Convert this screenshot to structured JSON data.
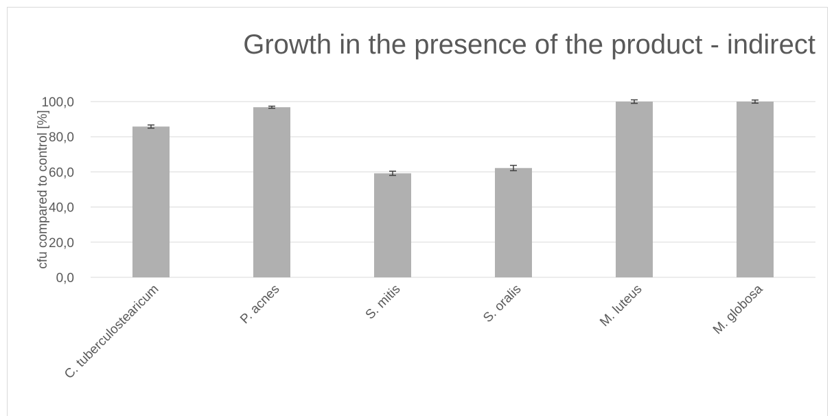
{
  "chart_data": {
    "type": "bar",
    "title": "Growth in the presence of the product - indirect",
    "xlabel": "",
    "ylabel": "cfu compared to control [%]",
    "categories": [
      "C. tuberculostearicum",
      "P. acnes",
      "S. mitis",
      "S. oralis",
      "M. luteus",
      "M. globosa"
    ],
    "values": [
      85.8,
      96.8,
      59.2,
      62.2,
      100.0,
      100.0
    ],
    "errors": [
      0.9,
      0.6,
      1.2,
      1.5,
      1.0,
      0.9
    ],
    "ylim": [
      0,
      100
    ],
    "yticks": [
      "0,0",
      "20,0",
      "40,0",
      "60,0",
      "80,0",
      "100,0"
    ],
    "ytick_values": [
      0,
      20,
      40,
      60,
      80,
      100
    ],
    "grid": true,
    "legend": "none",
    "colors": {
      "bar": "#b0b0b0",
      "grid": "#d9d9d9",
      "text": "#595959",
      "error": "#404040"
    }
  }
}
